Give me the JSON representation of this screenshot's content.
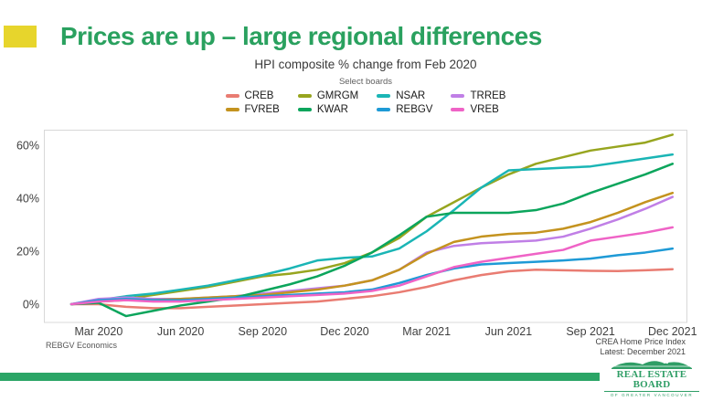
{
  "header": {
    "title": "Prices are up – large regional differences",
    "title_color": "#2aa15f",
    "accent_color": "#e7d52c",
    "subtitle": "HPI composite % change from Feb 2020",
    "select_label": "Select boards"
  },
  "footer": {
    "source": "REBGV Economics",
    "note_line1": "CREA Home Price Index",
    "note_line2": "Latest: December 2021",
    "bar_color": "#2ba566",
    "logo_line1": "REAL ESTATE BOARD",
    "logo_line2": "OF GREATER VANCOUVER"
  },
  "chart_data": {
    "type": "line",
    "title": "HPI composite % change from Feb 2020",
    "xlabel": "",
    "ylabel": "% change from Feb 2020",
    "grid": false,
    "legend_position": "top-center",
    "ylim": [
      -8,
      68
    ],
    "y_ticks": [
      0,
      20,
      40,
      60
    ],
    "y_tick_suffix": "%",
    "x": [
      "Feb 2020",
      "Mar 2020",
      "Apr 2020",
      "May 2020",
      "Jun 2020",
      "Jul 2020",
      "Aug 2020",
      "Sep 2020",
      "Oct 2020",
      "Nov 2020",
      "Dec 2020",
      "Jan 2021",
      "Feb 2021",
      "Mar 2021",
      "Apr 2021",
      "May 2021",
      "Jun 2021",
      "Jul 2021",
      "Aug 2021",
      "Sep 2021",
      "Oct 2021",
      "Nov 2021",
      "Dec 2021"
    ],
    "x_tick_labels": [
      "Mar 2020",
      "Jun 2020",
      "Sep 2020",
      "Dec 2020",
      "Mar 2021",
      "Jun 2021",
      "Sep 2021",
      "Dec 2021"
    ],
    "x_tick_indices": [
      1,
      4,
      7,
      10,
      13,
      16,
      19,
      22
    ],
    "series": [
      {
        "name": "CREB",
        "color": "#e97c72",
        "values": [
          0,
          0,
          -1,
          -1.5,
          -1.5,
          -1,
          -0.5,
          0,
          0.5,
          1,
          2,
          3,
          4.5,
          6.5,
          9,
          11,
          12.4,
          13,
          12.8,
          12.6,
          12.5,
          12.8,
          13.2
        ]
      },
      {
        "name": "GMRGM",
        "color": "#97a51f",
        "values": [
          0,
          1,
          2,
          3.5,
          5,
          6.5,
          8.5,
          10.5,
          11.5,
          13,
          15.5,
          19.5,
          25,
          33,
          38.5,
          44,
          49,
          53,
          55.5,
          58,
          59.5,
          61,
          64
        ]
      },
      {
        "name": "NSAR",
        "color": "#1ab5b5",
        "values": [
          0,
          1.5,
          3,
          4,
          5.5,
          7,
          9,
          11,
          13.5,
          16.5,
          17.5,
          18,
          21,
          27.5,
          35.5,
          44,
          50.5,
          51,
          51.5,
          52,
          53.5,
          55,
          56.5
        ]
      },
      {
        "name": "TRREB",
        "color": "#c07fe6",
        "values": [
          0,
          2,
          2.5,
          2,
          2,
          2.5,
          3,
          4,
          5,
          6,
          7,
          9,
          13,
          19.5,
          22,
          23,
          23.5,
          24,
          25.5,
          28.5,
          32,
          36,
          40.5
        ]
      },
      {
        "name": "FVREB",
        "color": "#c4931f",
        "values": [
          0,
          1,
          1.5,
          1.5,
          2,
          2.5,
          3,
          3.5,
          4.5,
          5.5,
          7,
          9,
          13,
          19,
          23.5,
          25.5,
          26.5,
          27,
          28.5,
          31,
          34.5,
          38.5,
          42
        ]
      },
      {
        "name": "KWAR",
        "color": "#0ba55c",
        "values": [
          0,
          0.5,
          -4.5,
          -2.5,
          -0.5,
          1,
          2.5,
          5,
          7.5,
          10.5,
          14.5,
          19.5,
          26,
          33,
          34.5,
          34.5,
          34.5,
          35.5,
          38,
          42,
          45.5,
          49,
          53
        ]
      },
      {
        "name": "REBGV",
        "color": "#1e9ad6",
        "values": [
          0,
          1.5,
          2,
          1.5,
          1.5,
          2,
          2.5,
          3,
          3.5,
          4,
          4.5,
          5.5,
          8,
          11,
          13.5,
          15,
          15.5,
          16,
          16.5,
          17.2,
          18.5,
          19.5,
          21
        ]
      },
      {
        "name": "VREB",
        "color": "#ef63c6",
        "values": [
          0,
          1,
          1.5,
          1,
          1,
          1.5,
          2,
          2.5,
          3,
          3.5,
          4,
          5,
          7,
          10.5,
          14,
          16,
          17.5,
          19,
          20.5,
          24,
          25.5,
          27,
          29
        ]
      }
    ]
  }
}
